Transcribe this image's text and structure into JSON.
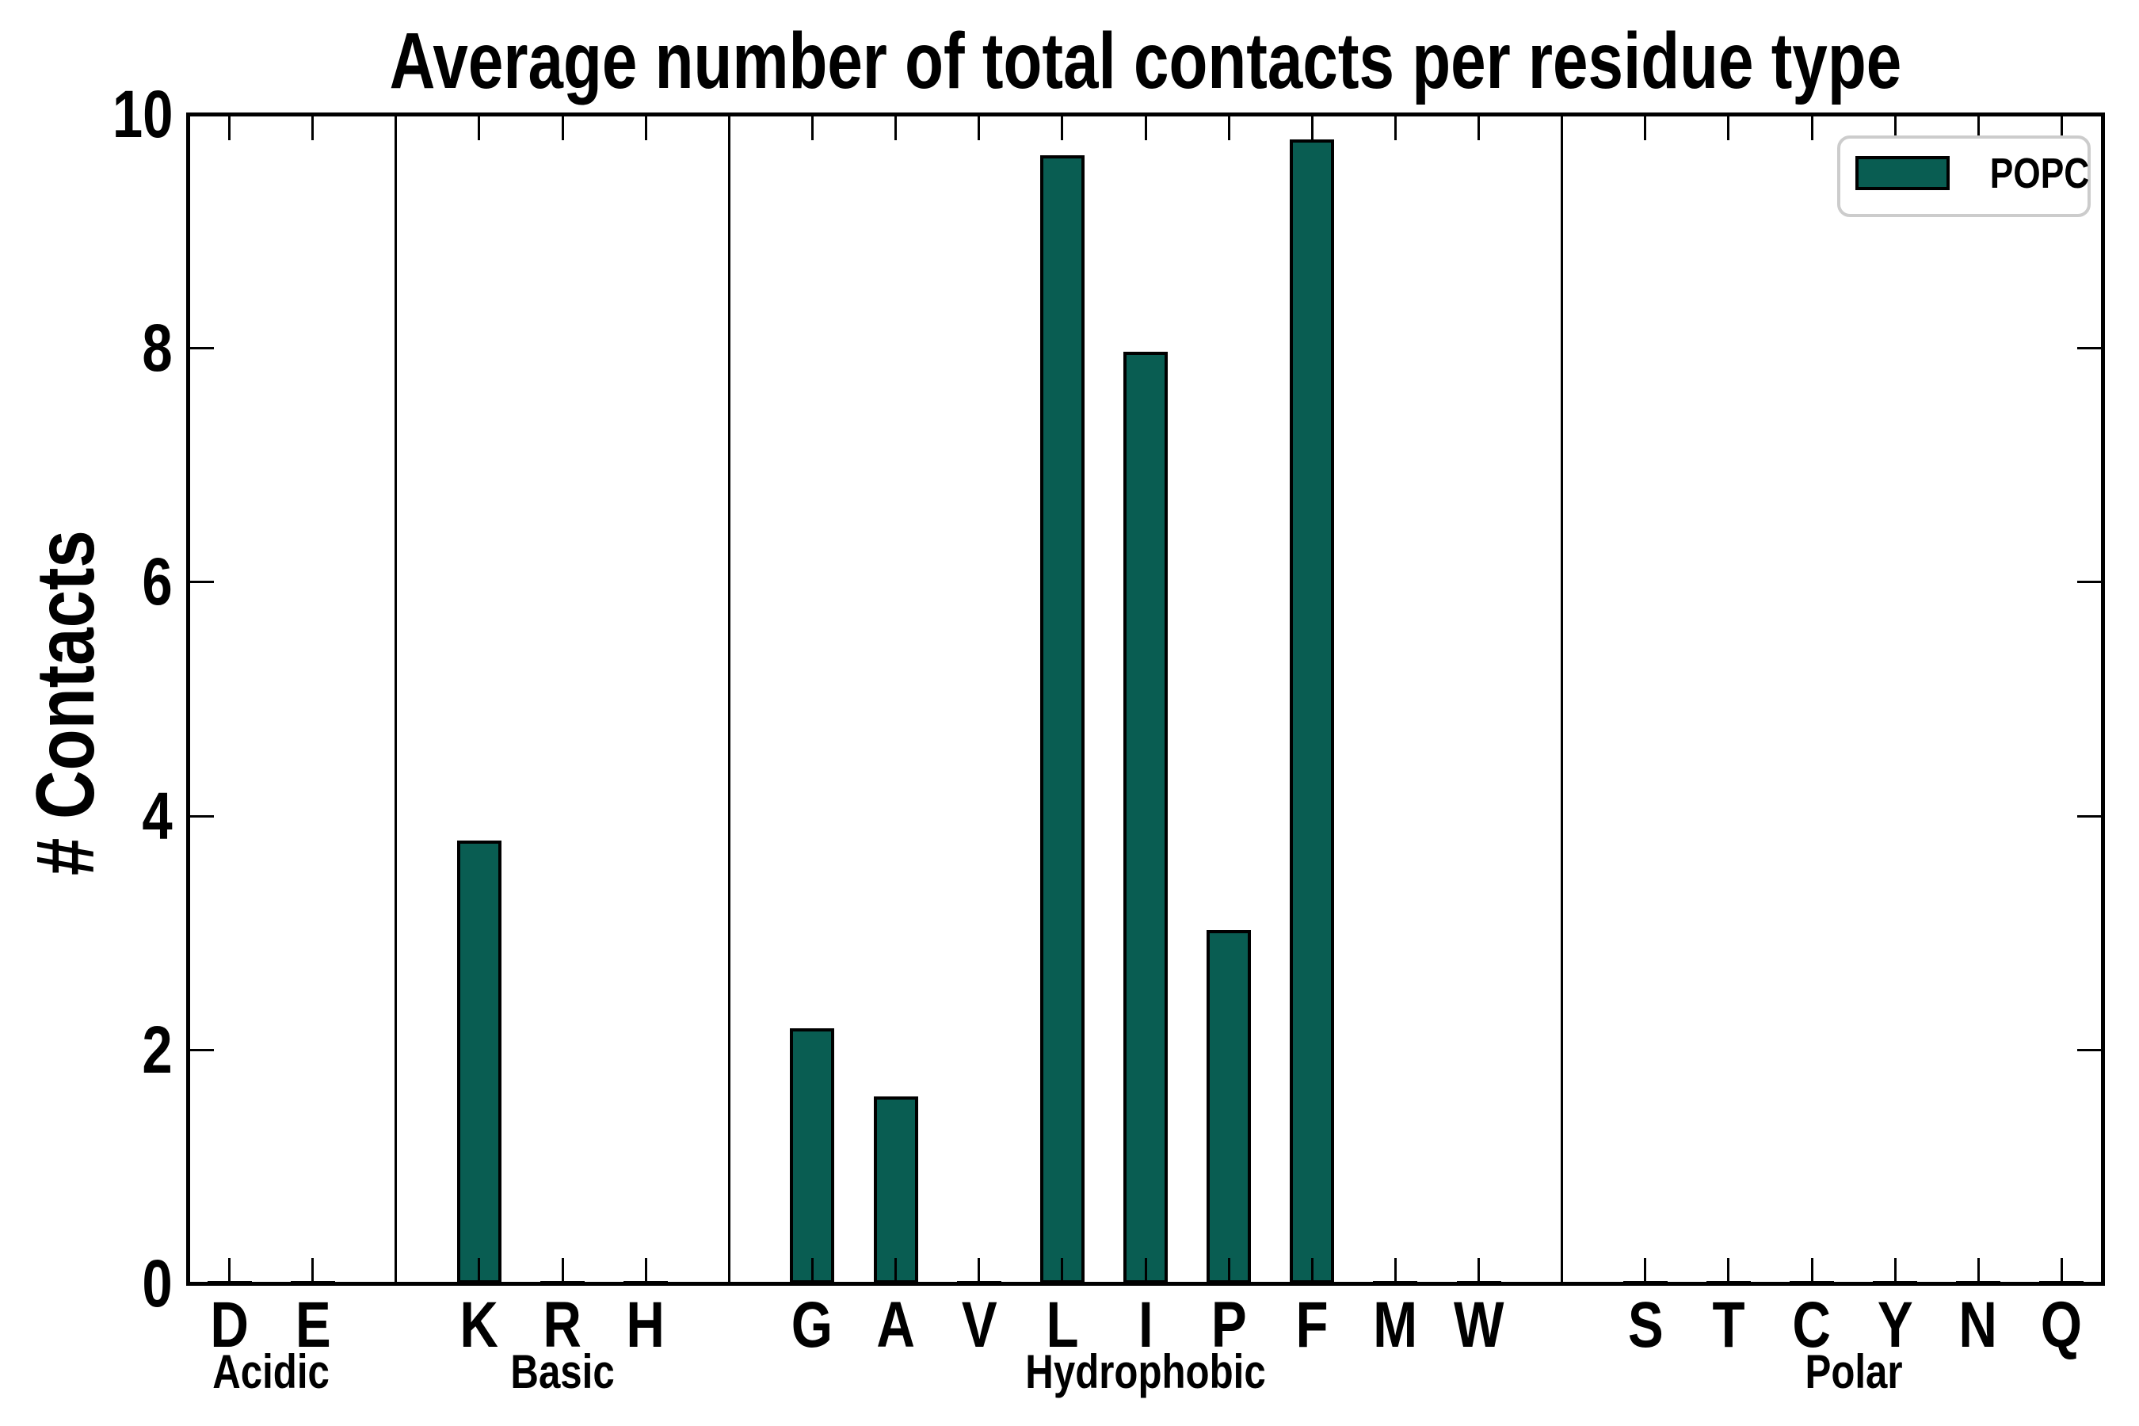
{
  "figure": {
    "title": "Average number of total contacts per residue type",
    "ylabel": "# Contacts",
    "background_color": "#ffffff",
    "text_color": "#000000"
  },
  "legend": {
    "label": "POPC",
    "swatch_color": "#095D52",
    "swatch_edge_color": "#000000",
    "box_border_color": "#cccccc",
    "position": "upper right"
  },
  "chart_data": {
    "type": "bar",
    "title": "Average number of total contacts per residue type",
    "xlabel": "",
    "ylabel": "# Contacts",
    "ylim": [
      0,
      10
    ],
    "yticks": [
      0,
      2,
      4,
      6,
      8,
      10
    ],
    "grid": false,
    "bar_color": "#095D52",
    "bar_edge_color": "#000000",
    "series": [
      {
        "name": "POPC",
        "color": "#095D52"
      }
    ],
    "groups": [
      {
        "name": "Acidic",
        "categories": [
          "D",
          "E"
        ],
        "values": [
          0.02,
          0.02
        ]
      },
      {
        "name": "Basic",
        "categories": [
          "K",
          "R",
          "H"
        ],
        "values": [
          3.79,
          0.02,
          0.02
        ]
      },
      {
        "name": "Hydrophobic",
        "categories": [
          "G",
          "A",
          "V",
          "L",
          "I",
          "P",
          "F",
          "M",
          "W"
        ],
        "values": [
          2.18,
          1.6,
          0.02,
          9.65,
          7.97,
          3.02,
          9.78,
          0.02,
          0.02
        ]
      },
      {
        "name": "Polar",
        "categories": [
          "S",
          "T",
          "C",
          "Y",
          "N",
          "Q"
        ],
        "values": [
          0.02,
          0.02,
          0.02,
          0.02,
          0.02,
          0.02
        ]
      }
    ],
    "layout_hints": {
      "group_dividers": true,
      "ticks_direction": "in",
      "legend_position": "upper right"
    }
  }
}
